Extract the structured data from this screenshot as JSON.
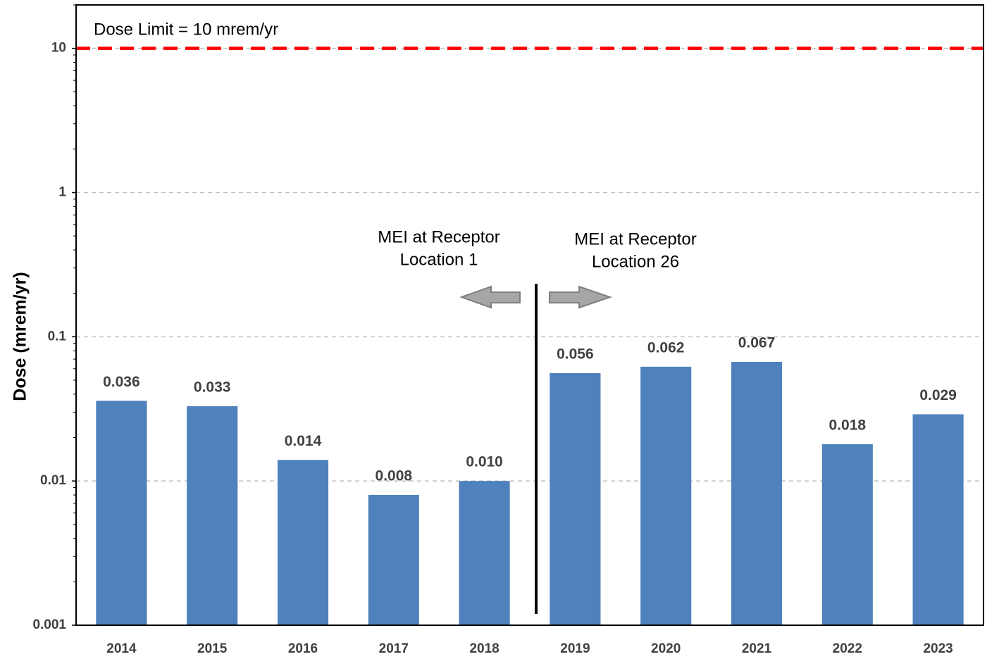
{
  "chart_data": {
    "type": "bar",
    "y_label": "Dose (mrem/yr)",
    "categories": [
      "2014",
      "2015",
      "2016",
      "2017",
      "2018",
      "2019",
      "2020",
      "2021",
      "2022",
      "2023"
    ],
    "values": [
      0.036,
      0.033,
      0.014,
      0.008,
      0.01,
      0.056,
      0.062,
      0.067,
      0.018,
      0.029
    ],
    "value_labels": [
      "0.036",
      "0.033",
      "0.014",
      "0.008",
      "0.010",
      "0.056",
      "0.062",
      "0.067",
      "0.018",
      "0.029"
    ],
    "color": "#4f81bd",
    "log_scale": true,
    "ylim": [
      0.001,
      20
    ],
    "yticks": [
      0.001,
      0.01,
      0.1,
      1,
      10
    ],
    "grid": true,
    "reference_line": {
      "value": 10,
      "label": "Dose Limit = 10 mrem/yr",
      "color": "#ff0000"
    },
    "annotations": [
      {
        "lines": [
          "MEI at Receptor",
          "Location 1"
        ]
      },
      {
        "lines": [
          "MEI at Receptor",
          "Location 26"
        ]
      }
    ]
  }
}
